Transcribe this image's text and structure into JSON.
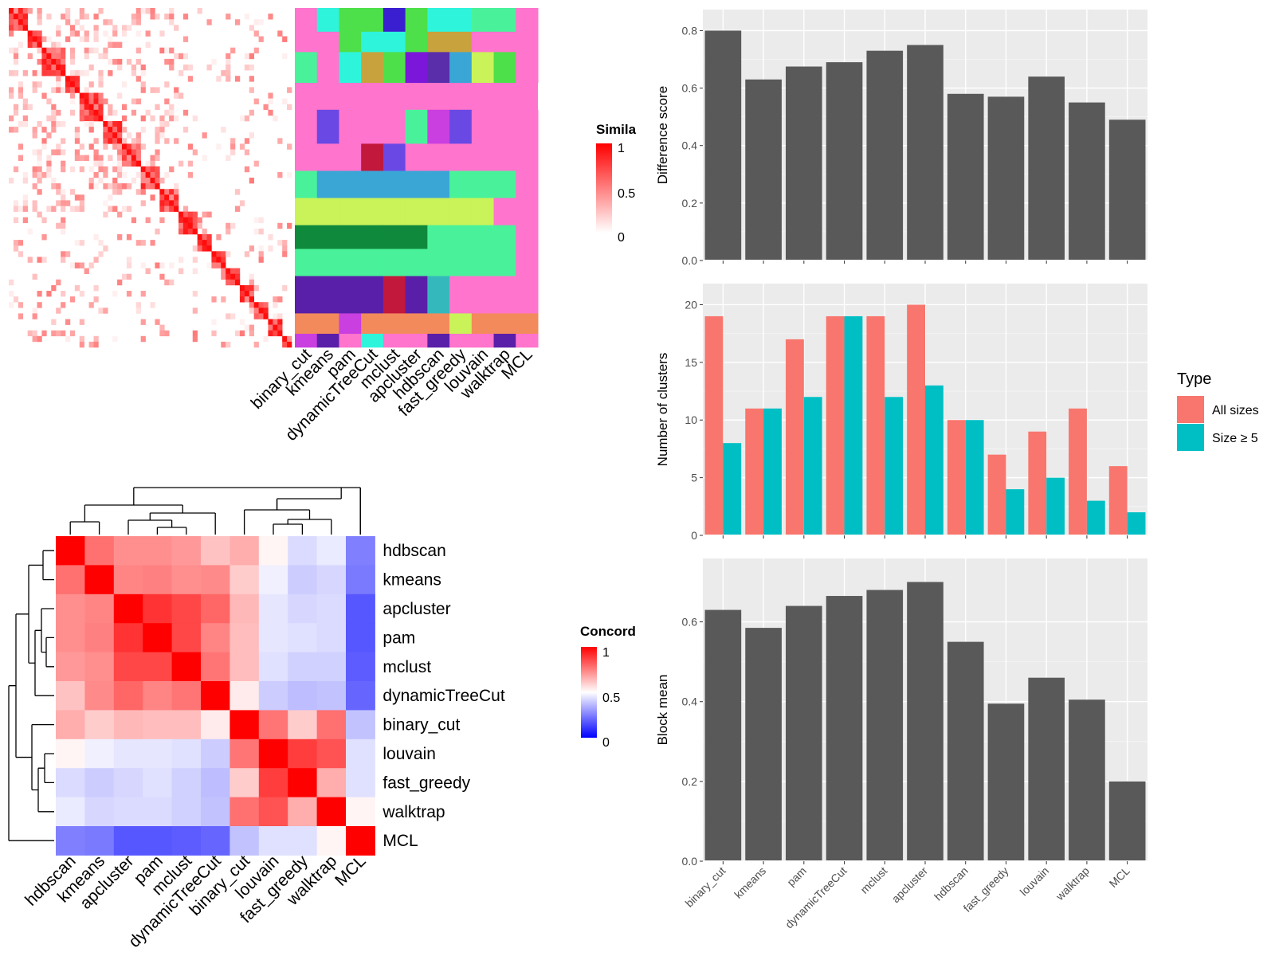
{
  "methods_bar": [
    "binary_cut",
    "kmeans",
    "pam",
    "dynamicTreeCut",
    "mclust",
    "apcluster",
    "hdbscan",
    "fast_greedy",
    "louvain",
    "walktrap",
    "MCL"
  ],
  "top_heatmap": {
    "column_labels": [
      "binary_cut",
      "kmeans",
      "pam",
      "dynamicTreeCut",
      "mclust",
      "apcluster",
      "hdbscan",
      "fast_greedy",
      "louvain",
      "walktrap",
      "MCL"
    ],
    "legend_title": "Simila",
    "legend_ticks": [
      "1",
      "0.5",
      "0"
    ]
  },
  "concordance": {
    "labels": [
      "hdbscan",
      "kmeans",
      "apcluster",
      "pam",
      "mclust",
      "dynamicTreeCut",
      "binary_cut",
      "louvain",
      "fast_greedy",
      "walktrap",
      "MCL"
    ],
    "legend_title": "Concord",
    "legend_ticks": [
      "1",
      "0.5",
      "0"
    ]
  },
  "chart_data": [
    {
      "type": "bar",
      "categories": [
        "binary_cut",
        "kmeans",
        "pam",
        "dynamicTreeCut",
        "mclust",
        "apcluster",
        "hdbscan",
        "fast_greedy",
        "louvain",
        "walktrap",
        "MCL"
      ],
      "values": [
        0.8,
        0.63,
        0.675,
        0.69,
        0.73,
        0.75,
        0.58,
        0.57,
        0.64,
        0.55,
        0.49
      ],
      "ylabel": "Difference score",
      "ylim": [
        0,
        0.84
      ],
      "yticks": [
        "0.0",
        "0.2",
        "0.4",
        "0.6",
        "0.8"
      ],
      "color": "#595959",
      "grid": true
    },
    {
      "type": "bar",
      "categories": [
        "binary_cut",
        "kmeans",
        "pam",
        "dynamicTreeCut",
        "mclust",
        "apcluster",
        "hdbscan",
        "fast_greedy",
        "louvain",
        "walktrap",
        "MCL"
      ],
      "series": [
        {
          "name": "All sizes",
          "color": "#F8766D",
          "values": [
            19,
            11,
            17,
            19,
            19,
            20,
            10,
            7,
            9,
            11,
            6
          ]
        },
        {
          "name": "Size ≥ 5",
          "color": "#00BFC4",
          "values": [
            8,
            11,
            12,
            19,
            12,
            13,
            10,
            4,
            5,
            3,
            2
          ]
        }
      ],
      "ylabel": "Number of clusters",
      "ylim": [
        0,
        21
      ],
      "yticks": [
        "0",
        "5",
        "10",
        "15",
        "20"
      ],
      "legend_title": "Type",
      "legend_position": "right",
      "grid": true
    },
    {
      "type": "bar",
      "categories": [
        "binary_cut",
        "kmeans",
        "pam",
        "dynamicTreeCut",
        "mclust",
        "apcluster",
        "hdbscan",
        "fast_greedy",
        "louvain",
        "walktrap",
        "MCL"
      ],
      "values": [
        0.63,
        0.585,
        0.64,
        0.665,
        0.68,
        0.7,
        0.55,
        0.395,
        0.46,
        0.405,
        0.2
      ],
      "ylabel": "Block mean",
      "ylim": [
        0,
        0.735
      ],
      "yticks": [
        "0.0",
        "0.2",
        "0.4",
        "0.6"
      ],
      "color": "#595959",
      "grid": true
    }
  ]
}
